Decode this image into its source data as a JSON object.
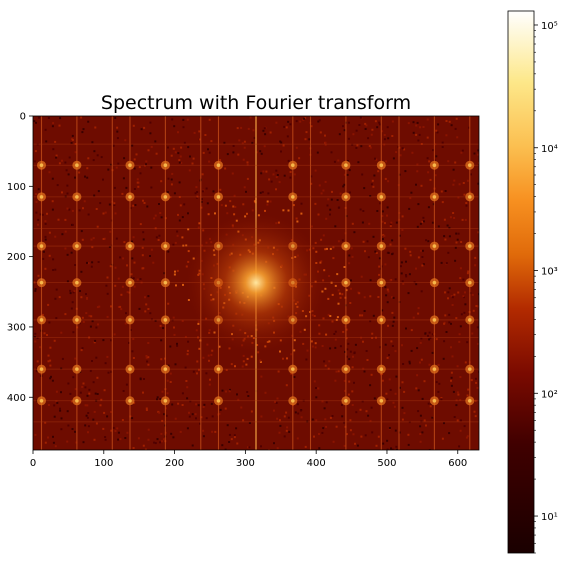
{
  "chart_data": {
    "type": "heatmap",
    "title": "Spectrum with Fourier transform",
    "xlabel": "",
    "ylabel": "",
    "xlim": [
      0,
      630
    ],
    "ylim": [
      475,
      0
    ],
    "x_ticks": [
      0,
      100,
      200,
      300,
      400,
      500,
      600
    ],
    "y_ticks": [
      0,
      100,
      200,
      300,
      400
    ],
    "x_tick_labels": [
      "0",
      "100",
      "200",
      "300",
      "400",
      "500",
      "600"
    ],
    "y_tick_labels": [
      "0",
      "100",
      "200",
      "300",
      "400"
    ],
    "colormap": "afmhot",
    "colorbar": {
      "scale": "log",
      "range": [
        5,
        130000
      ],
      "ticks": [
        10,
        100,
        1000,
        10000,
        100000
      ],
      "tick_labels": [
        "10¹",
        "10²",
        "10³",
        "10⁴",
        "10⁵"
      ],
      "colors": [
        "#1a0000",
        "#5a0000",
        "#9a1a00",
        "#d04a00",
        "#f58a1a",
        "#fbc050",
        "#fde88a",
        "#ffffff"
      ]
    },
    "grid": false,
    "central_peak": {
      "x": 315,
      "y": 237
    },
    "vertical_lines_x": [
      12,
      62,
      112,
      137,
      187,
      237,
      262,
      315,
      367,
      392,
      442,
      492,
      517,
      567,
      617
    ],
    "horizontal_lines_y": [
      40,
      70,
      115,
      160,
      185,
      237,
      290,
      315,
      360,
      405,
      435
    ]
  }
}
